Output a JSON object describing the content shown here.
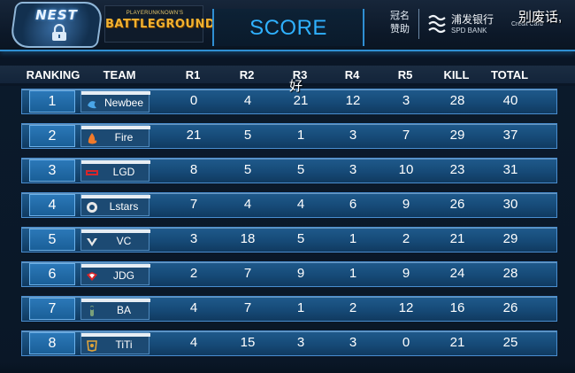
{
  "header": {
    "logo_text": "NEST",
    "game_logo_small": "PLAYERUNKNOWN'S",
    "game_logo_big": "BATTLEGROUNDS",
    "title": "SCORE",
    "sponsor_label": "冠名\n赞助",
    "bank_name_cn": "浦发银行",
    "bank_name_en": "SPD BANK",
    "card_tag": "Credit Card"
  },
  "overlay": {
    "comment_1": "别废话,",
    "comment_2": "好"
  },
  "columns": [
    "RANKING",
    "TEAM",
    "R1",
    "R2",
    "R3",
    "R4",
    "R5",
    "KILL",
    "TOTAL"
  ],
  "rows": [
    {
      "rank": "1",
      "team": "Newbee",
      "r1": "0",
      "r2": "4",
      "r3": "21",
      "r4": "12",
      "r5": "3",
      "kill": "28",
      "total": "40",
      "logo_color": "#4aa6e8"
    },
    {
      "rank": "2",
      "team": "Fire",
      "r1": "21",
      "r2": "5",
      "r3": "1",
      "r4": "3",
      "r5": "7",
      "kill": "29",
      "total": "37",
      "logo_color": "#f07a2a"
    },
    {
      "rank": "3",
      "team": "LGD",
      "r1": "8",
      "r2": "5",
      "r3": "5",
      "r4": "3",
      "r5": "10",
      "kill": "23",
      "total": "31",
      "logo_color": "#d8262a"
    },
    {
      "rank": "4",
      "team": "Lstars",
      "r1": "7",
      "r2": "4",
      "r3": "4",
      "r4": "6",
      "r5": "9",
      "kill": "26",
      "total": "30",
      "logo_color": "#e8e8e8"
    },
    {
      "rank": "5",
      "team": "VC",
      "r1": "3",
      "r2": "18",
      "r3": "5",
      "r4": "1",
      "r5": "2",
      "kill": "21",
      "total": "29",
      "logo_color": "#e8e8e8"
    },
    {
      "rank": "6",
      "team": "JDG",
      "r1": "2",
      "r2": "7",
      "r3": "9",
      "r4": "1",
      "r5": "9",
      "kill": "24",
      "total": "28",
      "logo_color": "#d8262a"
    },
    {
      "rank": "7",
      "team": "BA",
      "r1": "4",
      "r2": "7",
      "r3": "1",
      "r4": "2",
      "r5": "12",
      "kill": "16",
      "total": "26",
      "logo_color": "#7aa07a"
    },
    {
      "rank": "8",
      "team": "TiTi",
      "r1": "4",
      "r2": "15",
      "r3": "3",
      "r4": "3",
      "r5": "0",
      "kill": "21",
      "total": "25",
      "logo_color": "#e0a43a"
    }
  ]
}
